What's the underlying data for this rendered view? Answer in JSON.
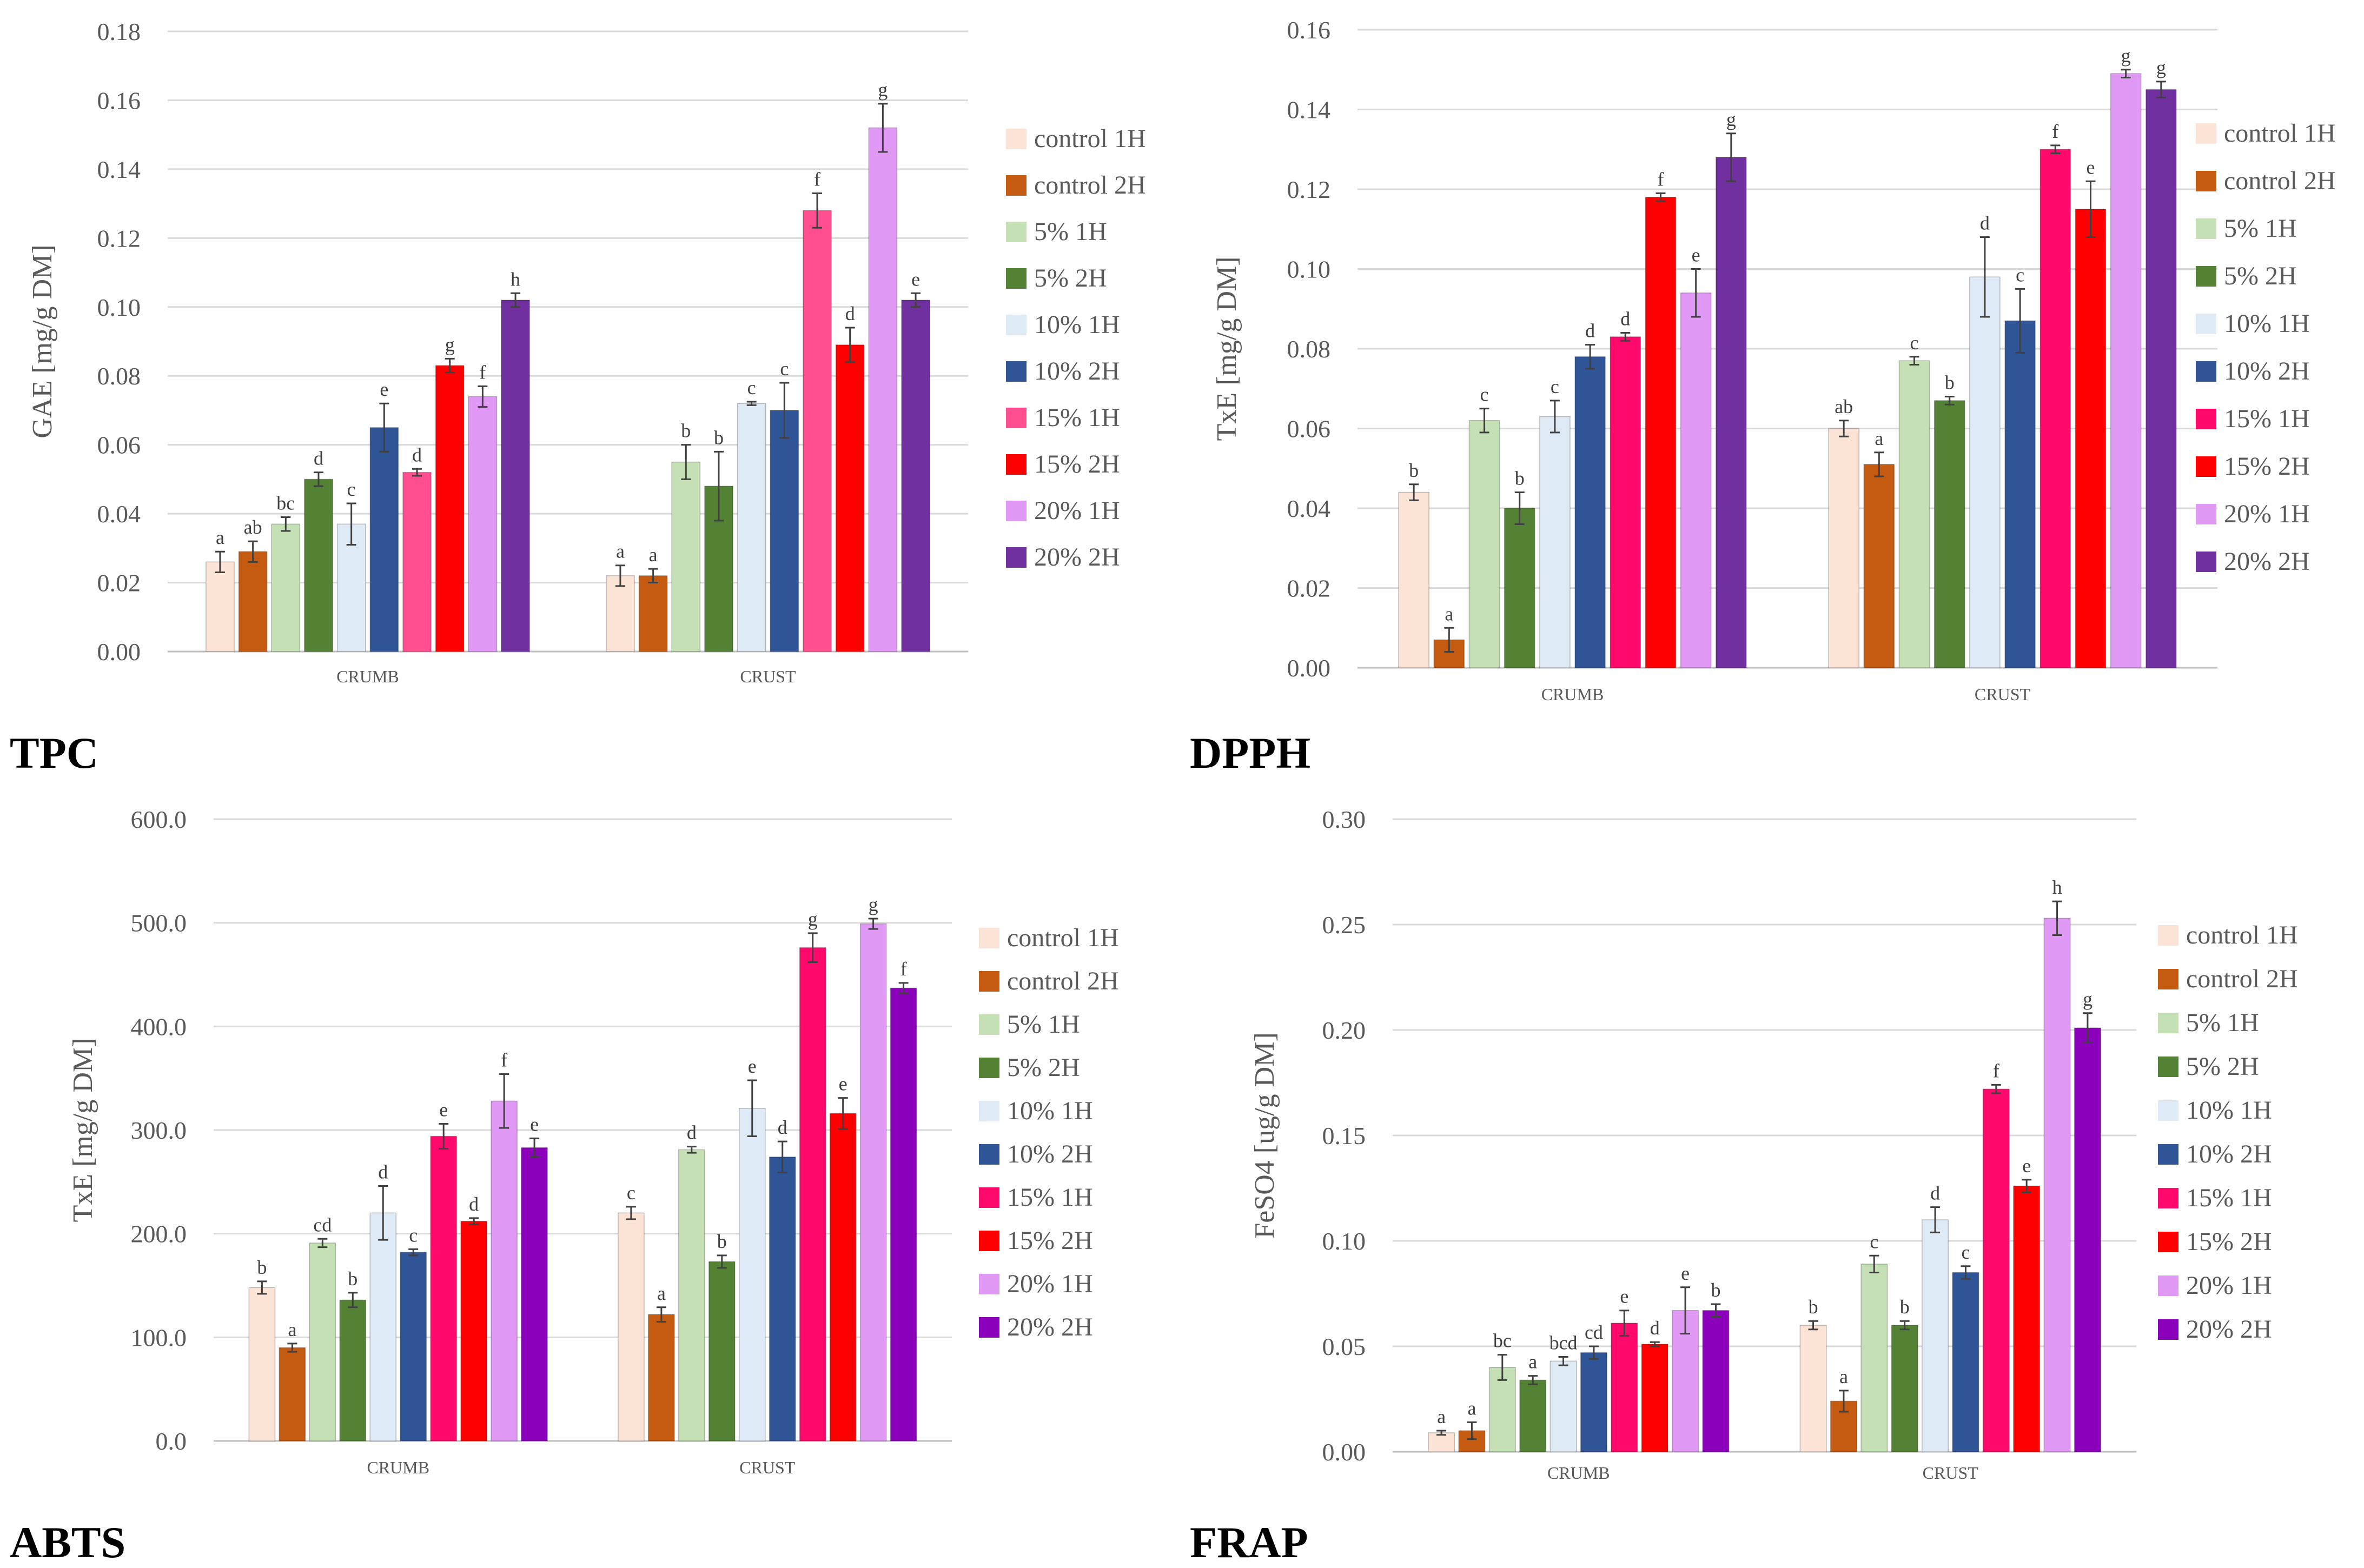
{
  "figure_labels": [
    "TPC",
    "DPPH",
    "ABTS",
    "FRAP"
  ],
  "chart_data": [
    {
      "type": "bar",
      "title": "TPC",
      "ylabel": "GAE [mg/g DM]",
      "xlabel": "",
      "ylim": [
        0,
        0.18
      ],
      "yticks": [
        0,
        0.02,
        0.04,
        0.06,
        0.08,
        0.1,
        0.12,
        0.14,
        0.16,
        0.18
      ],
      "ytick_labels": [
        "0.00",
        "0.02",
        "0.04",
        "0.06",
        "0.08",
        "0.10",
        "0.12",
        "0.14",
        "0.16",
        "0.18"
      ],
      "categories": [
        "CRUMB",
        "CRUST"
      ],
      "legend_position": "right",
      "series": [
        {
          "name": "control 1H",
          "color": "#fbe3d6",
          "values": [
            0.026,
            0.022
          ],
          "errors": [
            0.003,
            0.003
          ],
          "letters": [
            "a",
            "a"
          ]
        },
        {
          "name": "control 2H",
          "color": "#c55a11",
          "values": [
            0.029,
            0.022
          ],
          "errors": [
            0.003,
            0.002
          ],
          "letters": [
            "ab",
            "a"
          ]
        },
        {
          "name": "5% 1H",
          "color": "#c5e0b4",
          "values": [
            0.037,
            0.055
          ],
          "errors": [
            0.002,
            0.005
          ],
          "letters": [
            "bc",
            "b"
          ]
        },
        {
          "name": "5% 2H",
          "color": "#548235",
          "values": [
            0.05,
            0.048
          ],
          "errors": [
            0.002,
            0.01
          ],
          "letters": [
            "d",
            "b"
          ]
        },
        {
          "name": "10% 1H",
          "color": "#deebf7",
          "values": [
            0.037,
            0.072
          ],
          "errors": [
            0.006,
            0.0005
          ],
          "letters": [
            "c",
            "c"
          ]
        },
        {
          "name": "10% 2H",
          "color": "#2f5597",
          "values": [
            0.065,
            0.07
          ],
          "errors": [
            0.007,
            0.008
          ],
          "letters": [
            "e",
            "c"
          ]
        },
        {
          "name": "15% 1H",
          "color": "#ff4f91",
          "values": [
            0.052,
            0.128
          ],
          "errors": [
            0.001,
            0.005
          ],
          "letters": [
            "d",
            "f"
          ]
        },
        {
          "name": "15% 2H",
          "color": "#ff0000",
          "values": [
            0.083,
            0.089
          ],
          "errors": [
            0.002,
            0.005
          ],
          "letters": [
            "g",
            "d"
          ]
        },
        {
          "name": "20% 1H",
          "color": "#e09af5",
          "values": [
            0.074,
            0.152
          ],
          "errors": [
            0.003,
            0.007
          ],
          "letters": [
            "f",
            "g"
          ]
        },
        {
          "name": "20% 2H",
          "color": "#7030a0",
          "values": [
            0.102,
            0.102
          ],
          "errors": [
            0.002,
            0.002
          ],
          "letters": [
            "h",
            "e"
          ]
        }
      ]
    },
    {
      "type": "bar",
      "title": "DPPH",
      "ylabel": "TxE  [mg/g DM]",
      "xlabel": "",
      "ylim": [
        0,
        0.16
      ],
      "yticks": [
        0,
        0.02,
        0.04,
        0.06,
        0.08,
        0.1,
        0.12,
        0.14,
        0.16
      ],
      "ytick_labels": [
        "0.00",
        "0.02",
        "0.04",
        "0.06",
        "0.08",
        "0.10",
        "0.12",
        "0.14",
        "0.16"
      ],
      "categories": [
        "CRUMB",
        "CRUST"
      ],
      "legend_position": "right",
      "series": [
        {
          "name": "control 1H",
          "color": "#fbe3d6",
          "values": [
            0.044,
            0.06
          ],
          "errors": [
            0.002,
            0.002
          ],
          "letters": [
            "b",
            "ab"
          ]
        },
        {
          "name": "control 2H",
          "color": "#c55a11",
          "values": [
            0.007,
            0.051
          ],
          "errors": [
            0.003,
            0.003
          ],
          "letters": [
            "a",
            "a"
          ]
        },
        {
          "name": "5% 1H",
          "color": "#c5e0b4",
          "values": [
            0.062,
            0.077
          ],
          "errors": [
            0.003,
            0.001
          ],
          "letters": [
            "c",
            "c"
          ]
        },
        {
          "name": "5% 2H",
          "color": "#548235",
          "values": [
            0.04,
            0.067
          ],
          "errors": [
            0.004,
            0.001
          ],
          "letters": [
            "b",
            "b"
          ]
        },
        {
          "name": "10% 1H",
          "color": "#deebf7",
          "values": [
            0.063,
            0.098
          ],
          "errors": [
            0.004,
            0.01
          ],
          "letters": [
            "c",
            "d"
          ]
        },
        {
          "name": "10% 2H",
          "color": "#2f5597",
          "values": [
            0.078,
            0.087
          ],
          "errors": [
            0.003,
            0.008
          ],
          "letters": [
            "d",
            "c"
          ]
        },
        {
          "name": "15% 1H",
          "color": "#ff0a6c",
          "values": [
            0.083,
            0.13
          ],
          "errors": [
            0.001,
            0.001
          ],
          "letters": [
            "d",
            "f"
          ]
        },
        {
          "name": "15% 2H",
          "color": "#ff0000",
          "values": [
            0.118,
            0.115
          ],
          "errors": [
            0.001,
            0.007
          ],
          "letters": [
            "f",
            "e"
          ]
        },
        {
          "name": "20% 1H",
          "color": "#e09af5",
          "values": [
            0.094,
            0.149
          ],
          "errors": [
            0.006,
            0.001
          ],
          "letters": [
            "e",
            "g"
          ]
        },
        {
          "name": "20% 2H",
          "color": "#7030a0",
          "values": [
            0.128,
            0.145
          ],
          "errors": [
            0.006,
            0.002
          ],
          "letters": [
            "g",
            "g"
          ]
        }
      ]
    },
    {
      "type": "bar",
      "title": "ABTS",
      "ylabel": "TxE  [mg/g DM]",
      "xlabel": "",
      "ylim": [
        0,
        600
      ],
      "yticks": [
        0,
        100,
        200,
        300,
        400,
        500,
        600
      ],
      "ytick_labels": [
        "0.0",
        "100.0",
        "200.0",
        "300.0",
        "400.0",
        "500.0",
        "600.0"
      ],
      "categories": [
        "CRUMB",
        "CRUST"
      ],
      "legend_position": "right",
      "series": [
        {
          "name": "control 1H",
          "color": "#fbe3d6",
          "values": [
            148,
            220
          ],
          "errors": [
            6,
            6
          ],
          "letters": [
            "b",
            "c"
          ]
        },
        {
          "name": "control 2H",
          "color": "#c55a11",
          "values": [
            90,
            122
          ],
          "errors": [
            4,
            7
          ],
          "letters": [
            "a",
            "a"
          ]
        },
        {
          "name": "5% 1H",
          "color": "#c5e0b4",
          "values": [
            191,
            281
          ],
          "errors": [
            4,
            3
          ],
          "letters": [
            "cd",
            "d"
          ]
        },
        {
          "name": "5% 2H",
          "color": "#548235",
          "values": [
            136,
            173
          ],
          "errors": [
            7,
            6
          ],
          "letters": [
            "b",
            "b"
          ]
        },
        {
          "name": "10% 1H",
          "color": "#deebf7",
          "values": [
            220,
            321
          ],
          "errors": [
            26,
            27
          ],
          "letters": [
            "d",
            "e"
          ]
        },
        {
          "name": "10% 2H",
          "color": "#2f5597",
          "values": [
            182,
            274
          ],
          "errors": [
            3,
            15
          ],
          "letters": [
            "c",
            "d"
          ]
        },
        {
          "name": "15% 1H",
          "color": "#ff0a6c",
          "values": [
            294,
            476
          ],
          "errors": [
            12,
            14
          ],
          "letters": [
            "e",
            "g"
          ]
        },
        {
          "name": "15% 2H",
          "color": "#ff0000",
          "values": [
            212,
            316
          ],
          "errors": [
            3,
            15
          ],
          "letters": [
            "d",
            "e"
          ]
        },
        {
          "name": "20% 1H",
          "color": "#e09af5",
          "values": [
            328,
            499
          ],
          "errors": [
            26,
            5
          ],
          "letters": [
            "f",
            "g"
          ]
        },
        {
          "name": "20% 2H",
          "color": "#8b00bb",
          "values": [
            283,
            437
          ],
          "errors": [
            9,
            5
          ],
          "letters": [
            "e",
            "f"
          ]
        }
      ]
    },
    {
      "type": "bar",
      "title": "FRAP",
      "ylabel": "FeSO4 [ug/g DM]",
      "xlabel": "",
      "ylim": [
        0,
        0.3
      ],
      "yticks": [
        0,
        0.05,
        0.1,
        0.15,
        0.2,
        0.25,
        0.3
      ],
      "ytick_labels": [
        "0.00",
        "0.05",
        "0.10",
        "0.15",
        "0.20",
        "0.25",
        "0.30"
      ],
      "categories": [
        "CRUMB",
        "CRUST"
      ],
      "legend_position": "right",
      "series": [
        {
          "name": "control 1H",
          "color": "#fbe3d6",
          "values": [
            0.009,
            0.06
          ],
          "errors": [
            0.001,
            0.002
          ],
          "letters": [
            "a",
            "b"
          ]
        },
        {
          "name": "control 2H",
          "color": "#c55a11",
          "values": [
            0.01,
            0.024
          ],
          "errors": [
            0.004,
            0.005
          ],
          "letters": [
            "a",
            "a"
          ]
        },
        {
          "name": "5% 1H",
          "color": "#c5e0b4",
          "values": [
            0.04,
            0.089
          ],
          "errors": [
            0.006,
            0.004
          ],
          "letters": [
            "bc",
            "c"
          ]
        },
        {
          "name": "5% 2H",
          "color": "#548235",
          "values": [
            0.034,
            0.06
          ],
          "errors": [
            0.002,
            0.002
          ],
          "letters": [
            "a",
            "b"
          ]
        },
        {
          "name": "10% 1H",
          "color": "#deebf7",
          "values": [
            0.043,
            0.11
          ],
          "errors": [
            0.002,
            0.006
          ],
          "letters": [
            "bcd",
            "d"
          ]
        },
        {
          "name": "10% 2H",
          "color": "#2f5597",
          "values": [
            0.047,
            0.085
          ],
          "errors": [
            0.003,
            0.003
          ],
          "letters": [
            "cd",
            "c"
          ]
        },
        {
          "name": "15% 1H",
          "color": "#ff0a6c",
          "values": [
            0.061,
            0.172
          ],
          "errors": [
            0.006,
            0.002
          ],
          "letters": [
            "e",
            "f"
          ]
        },
        {
          "name": "15% 2H",
          "color": "#ff0000",
          "values": [
            0.051,
            0.126
          ],
          "errors": [
            0.001,
            0.003
          ],
          "letters": [
            "d",
            "e"
          ]
        },
        {
          "name": "20% 1H",
          "color": "#e09af5",
          "values": [
            0.067,
            0.253
          ],
          "errors": [
            0.011,
            0.008
          ],
          "letters": [
            "e",
            "h"
          ]
        },
        {
          "name": "20% 2H",
          "color": "#8b00bb",
          "values": [
            0.067,
            0.201
          ],
          "errors": [
            0.003,
            0.007
          ],
          "letters": [
            "b",
            "g"
          ]
        }
      ]
    }
  ]
}
